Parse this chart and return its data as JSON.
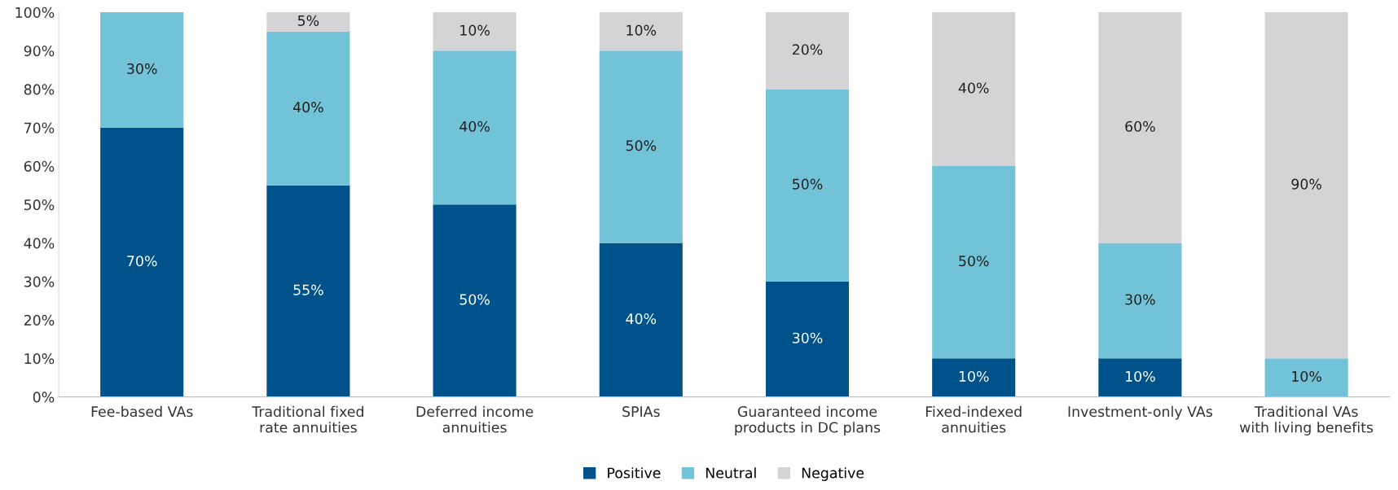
{
  "chart_data": {
    "type": "bar",
    "stacked": true,
    "categories": [
      "Fee-based VAs",
      "Traditional fixed\nrate annuities",
      "Deferred income\nannuities",
      "SPIAs",
      "Guaranteed income\nproducts in DC plans",
      "Fixed-indexed\nannuities",
      "Investment-only VAs",
      "Traditional VAs\nwith living benefits"
    ],
    "series": [
      {
        "name": "Positive",
        "color": "#00538a",
        "values": [
          70,
          55,
          50,
          40,
          30,
          10,
          10,
          0
        ],
        "value_labels": [
          "70%",
          "55%",
          "50%",
          "40%",
          "30%",
          "10%",
          "10%",
          null
        ]
      },
      {
        "name": "Neutral",
        "color": "#72c3d7",
        "values": [
          30,
          40,
          40,
          50,
          50,
          50,
          30,
          10
        ],
        "value_labels": [
          "30%",
          "40%",
          "40%",
          "50%",
          "50%",
          "50%",
          "30%",
          "10%"
        ]
      },
      {
        "name": "Negative",
        "color": "#d4d4d6",
        "values": [
          0,
          5,
          10,
          10,
          20,
          40,
          60,
          90
        ],
        "value_labels": [
          null,
          "5%",
          "10%",
          "10%",
          "20%",
          "40%",
          "60%",
          "90%"
        ]
      }
    ],
    "ylim": [
      0,
      100
    ],
    "yticks": [
      {
        "value": 0,
        "label": "0%"
      },
      {
        "value": 10,
        "label": "10%"
      },
      {
        "value": 20,
        "label": "20%"
      },
      {
        "value": 30,
        "label": "30%"
      },
      {
        "value": 40,
        "label": "40%"
      },
      {
        "value": 50,
        "label": "50%"
      },
      {
        "value": 60,
        "label": "60%"
      },
      {
        "value": 70,
        "label": "70%"
      },
      {
        "value": 80,
        "label": "80%"
      },
      {
        "value": 90,
        "label": "90%"
      },
      {
        "value": 100,
        "label": "100%"
      }
    ],
    "grid": false,
    "legend": "bottom"
  }
}
